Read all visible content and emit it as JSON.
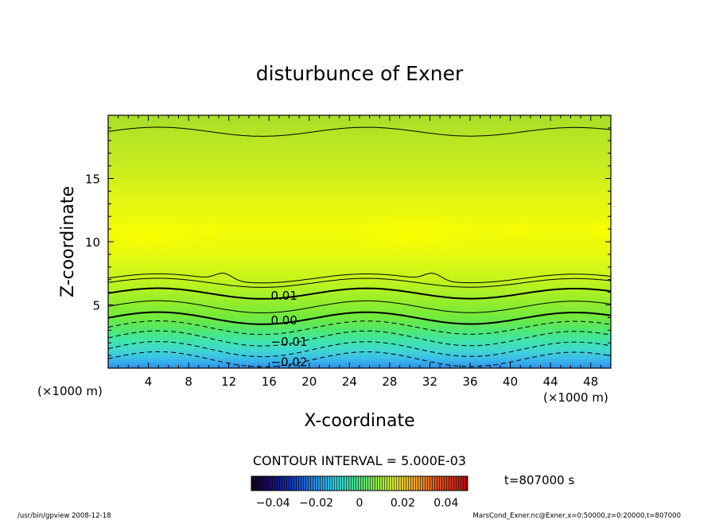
{
  "chart_data": {
    "type": "contour",
    "title": "disturbunce of Exner",
    "xlabel": "X-coordinate",
    "ylabel": "Z-coordinate",
    "x_unit_left": "(×1000 m)",
    "x_unit_right": "(×1000 m)",
    "xlim": [
      0,
      50
    ],
    "ylim": [
      0,
      20
    ],
    "x_ticks": [
      4,
      8,
      12,
      16,
      20,
      24,
      28,
      32,
      36,
      40,
      44,
      48
    ],
    "x_tick_labels": [
      "4",
      "8",
      "12",
      "16",
      "20",
      "24",
      "28",
      "32",
      "36",
      "40",
      "44",
      "48"
    ],
    "y_ticks": [
      5,
      10,
      15
    ],
    "y_tick_labels": [
      "5",
      "10",
      "15"
    ],
    "contour_labels": [
      {
        "text": "0.01",
        "x": 17.5,
        "z": 5.8
      },
      {
        "text": "0.00",
        "x": 17.5,
        "z": 3.85
      },
      {
        "text": "−0.01",
        "x": 18.0,
        "z": 2.15
      },
      {
        "text": "−0.02",
        "x": 18.0,
        "z": 0.55
      }
    ],
    "contour_lines": [
      {
        "value": 0.04,
        "base_z": 18.7,
        "amp": 0.3,
        "dashed": false,
        "thick": false
      },
      {
        "value": 0.025,
        "base_z": 7.1,
        "amp": 0.3,
        "dashed": false,
        "thick": false,
        "bumps": [
          11.5,
          32.3
        ]
      },
      {
        "value": 0.015,
        "base_z": 6.75,
        "amp": 0.3,
        "dashed": false,
        "thick": false
      },
      {
        "value": 0.01,
        "base_z": 5.9,
        "amp": 0.35,
        "dashed": false,
        "thick": true
      },
      {
        "value": 0.005,
        "base_z": 4.85,
        "amp": 0.4,
        "dashed": false,
        "thick": false
      },
      {
        "value": 0.0,
        "base_z": 3.95,
        "amp": 0.4,
        "dashed": false,
        "thick": true
      },
      {
        "value": -0.005,
        "base_z": 3.2,
        "amp": 0.45,
        "dashed": true,
        "thick": false
      },
      {
        "value": -0.01,
        "base_z": 2.35,
        "amp": 0.5,
        "dashed": true,
        "thick": false
      },
      {
        "value": -0.015,
        "base_z": 1.5,
        "amp": 0.5,
        "dashed": true,
        "thick": false
      },
      {
        "value": -0.02,
        "base_z": 0.7,
        "amp": 0.5,
        "dashed": true,
        "thick": false
      }
    ],
    "contour_interval_text": "CONTOUR INTERVAL = 5.000E-03",
    "colorbar": {
      "min": -0.05,
      "max": 0.05,
      "tick_labels": [
        "−0.04",
        "−0.02",
        "0",
        "0.02",
        "0.04"
      ],
      "tick_values": [
        -0.04,
        -0.02,
        0,
        0.02,
        0.04
      ]
    },
    "time_text": "t=807000 s",
    "footer_left": "/usr/bin/gpview   2008-12-18",
    "footer_right": "MarsCond_Exner.nc@Exner,x=0:50000,z=0:20000,t=807000"
  }
}
